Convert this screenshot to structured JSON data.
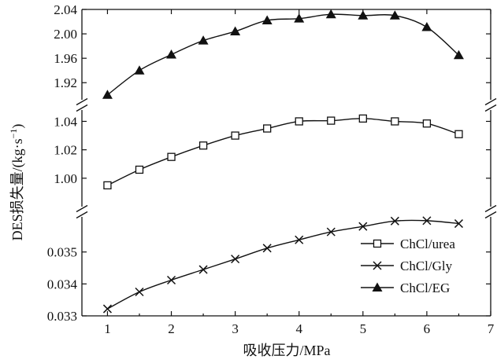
{
  "chart_data": {
    "type": "line",
    "xlabel": "吸收压力/MPa",
    "ylabel": "DES损失量/(kg·s",
    "ylabel_sup": "−1",
    "ylabel_close": ")",
    "x_ticks": [
      "1",
      "2",
      "3",
      "4",
      "5",
      "6",
      "7"
    ],
    "xlim": [
      0.6,
      7
    ],
    "panels": [
      {
        "name": "top",
        "ylim": [
          1.892,
          2.04
        ],
        "yticks": [
          "1.92",
          "1.96",
          "2.00",
          "2.04"
        ]
      },
      {
        "name": "middle",
        "ylim": [
          0.98,
          1.048
        ],
        "yticks": [
          "1.00",
          "1.02",
          "1.04"
        ]
      },
      {
        "name": "bottom",
        "ylim": [
          0.033,
          0.0361
        ],
        "yticks": [
          "0.033",
          "0.034",
          "0.035"
        ]
      }
    ],
    "x": [
      1,
      1.5,
      2,
      2.5,
      3,
      3.5,
      4,
      4.5,
      5,
      5.5,
      6,
      6.5
    ],
    "series": [
      {
        "name": "ChCl/urea",
        "marker": "square",
        "panel": "middle",
        "values": [
          0.995,
          1.006,
          1.015,
          1.023,
          1.03,
          1.035,
          1.04,
          1.0405,
          1.042,
          1.04,
          1.0385,
          1.031
        ]
      },
      {
        "name": "ChCl/Gly",
        "marker": "cross",
        "panel": "bottom",
        "values": [
          0.03322,
          0.03375,
          0.03412,
          0.03445,
          0.03478,
          0.03512,
          0.03538,
          0.03563,
          0.0358,
          0.03597,
          0.03598,
          0.03589
        ]
      },
      {
        "name": "ChCl/EG",
        "marker": "triangle",
        "panel": "top",
        "values": [
          1.9,
          1.94,
          1.966,
          1.989,
          2.004,
          2.022,
          2.025,
          2.032,
          2.03,
          2.03,
          2.011,
          1.965
        ]
      }
    ],
    "legend": {
      "position": "lower-right",
      "entries": [
        "ChCl/urea",
        "ChCl/Gly",
        "ChCl/EG"
      ]
    }
  }
}
